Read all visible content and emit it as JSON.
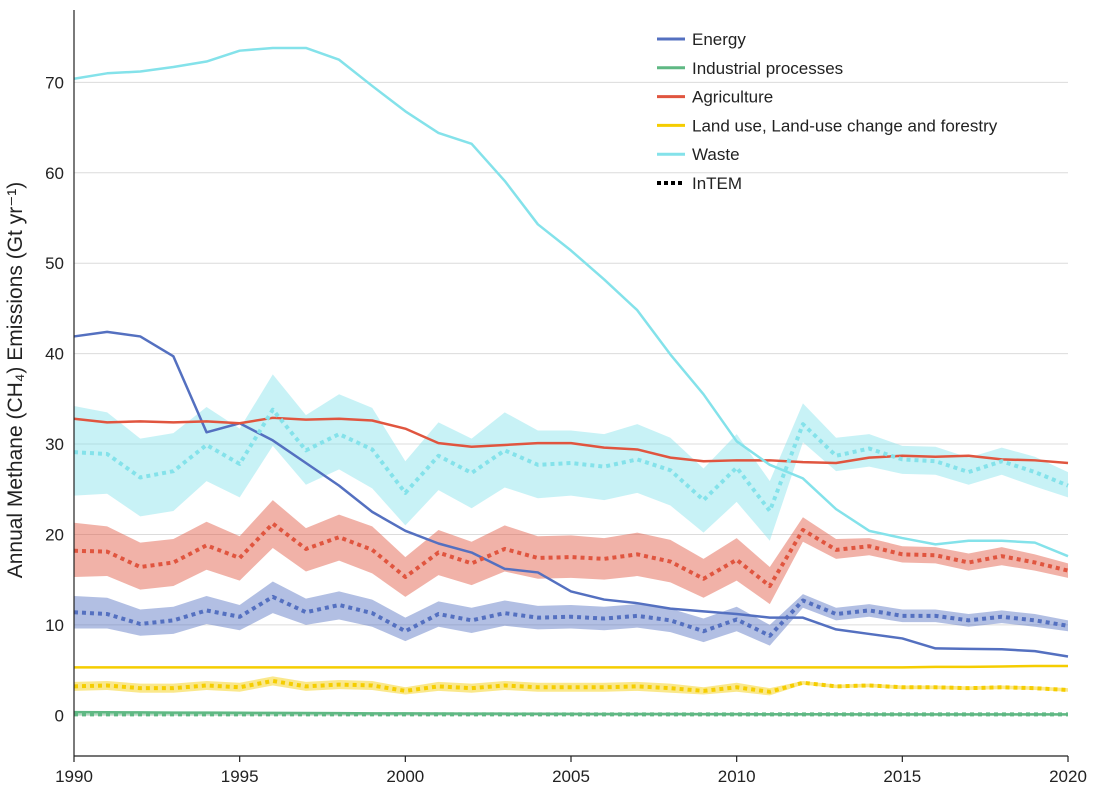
{
  "chart_data": {
    "type": "line",
    "title": "",
    "xlabel": "",
    "ylabel": "Annual Methane (CH₄) Emissions (Gt yr⁻¹)",
    "xlim": [
      1990,
      2020
    ],
    "ylim": [
      -4.5,
      78
    ],
    "xticks": [
      1990,
      1995,
      2000,
      2005,
      2010,
      2015,
      2020
    ],
    "yticks": [
      0,
      10,
      20,
      30,
      40,
      50,
      60,
      70
    ],
    "grid": "horizontal",
    "legend_position": "top-right",
    "legend": [
      {
        "label": "Energy",
        "color": "#5470c0",
        "style": "solid"
      },
      {
        "label": "Industrial processes",
        "color": "#5fb883",
        "style": "solid"
      },
      {
        "label": "Agriculture",
        "color": "#e0553f",
        "style": "solid"
      },
      {
        "label": "Land use, Land-use change and forestry",
        "color": "#f5cd00",
        "style": "solid"
      },
      {
        "label": "Waste",
        "color": "#84e2ea",
        "style": "solid"
      },
      {
        "label": "InTEM",
        "color": "#000000",
        "style": "dotted"
      }
    ],
    "x": [
      1990,
      1991,
      1992,
      1993,
      1994,
      1995,
      1996,
      1997,
      1998,
      1999,
      2000,
      2001,
      2002,
      2003,
      2004,
      2005,
      2006,
      2007,
      2008,
      2009,
      2010,
      2011,
      2012,
      2013,
      2014,
      2015,
      2016,
      2017,
      2018,
      2019,
      2020
    ],
    "inventory_series": [
      {
        "name": "Energy",
        "color": "#5470c0",
        "values": [
          41.9,
          42.4,
          41.9,
          39.7,
          31.3,
          32.3,
          30.4,
          27.9,
          25.4,
          22.5,
          20.4,
          19.0,
          18.0,
          16.2,
          15.8,
          13.7,
          12.8,
          12.4,
          11.8,
          11.5,
          11.2,
          10.8,
          10.8,
          9.5,
          9.0,
          8.5,
          7.4,
          7.35,
          7.3,
          7.1,
          6.5
        ]
      },
      {
        "name": "Industrial processes",
        "color": "#5fb883",
        "values": [
          0.35,
          0.34,
          0.32,
          0.3,
          0.29,
          0.28,
          0.27,
          0.25,
          0.24,
          0.22,
          0.21,
          0.2,
          0.19,
          0.18,
          0.17,
          0.16,
          0.15,
          0.15,
          0.14,
          0.13,
          0.13,
          0.12,
          0.12,
          0.12,
          0.11,
          0.11,
          0.11,
          0.11,
          0.1,
          0.1,
          0.1
        ]
      },
      {
        "name": "Agriculture",
        "color": "#e0553f",
        "values": [
          32.8,
          32.4,
          32.5,
          32.4,
          32.5,
          32.3,
          32.9,
          32.7,
          32.8,
          32.6,
          31.7,
          30.1,
          29.7,
          29.9,
          30.1,
          30.1,
          29.6,
          29.4,
          28.5,
          28.1,
          28.2,
          28.2,
          28.0,
          27.9,
          28.5,
          28.7,
          28.6,
          28.7,
          28.3,
          28.2,
          27.9
        ]
      },
      {
        "name": "Land use, Land-use change and forestry",
        "color": "#f5cd00",
        "values": [
          5.3,
          5.3,
          5.3,
          5.3,
          5.3,
          5.3,
          5.3,
          5.3,
          5.3,
          5.3,
          5.3,
          5.3,
          5.3,
          5.3,
          5.3,
          5.3,
          5.3,
          5.3,
          5.3,
          5.3,
          5.3,
          5.3,
          5.3,
          5.3,
          5.3,
          5.3,
          5.35,
          5.35,
          5.4,
          5.45,
          5.45
        ]
      },
      {
        "name": "Waste",
        "color": "#84e2ea",
        "values": [
          70.4,
          71.0,
          71.2,
          71.7,
          72.3,
          73.5,
          73.8,
          73.8,
          72.5,
          69.6,
          66.8,
          64.4,
          63.2,
          59.1,
          54.3,
          51.4,
          48.2,
          44.8,
          39.9,
          35.5,
          30.3,
          27.7,
          26.2,
          22.8,
          20.4,
          19.6,
          18.9,
          19.3,
          19.3,
          19.1,
          17.6
        ]
      }
    ],
    "intem_series": [
      {
        "name": "Energy",
        "color": "#5470c0",
        "values": [
          11.4,
          11.2,
          10.1,
          10.5,
          11.6,
          10.9,
          13.1,
          11.4,
          12.2,
          11.3,
          9.3,
          11.2,
          10.5,
          11.3,
          10.8,
          10.9,
          10.7,
          11.0,
          10.5,
          9.3,
          10.6,
          8.8,
          12.7,
          11.2,
          11.6,
          11.0,
          11.0,
          10.5,
          10.9,
          10.5,
          9.9
        ],
        "lower": [
          9.6,
          9.6,
          8.8,
          9.0,
          10.1,
          9.4,
          11.3,
          10.0,
          10.6,
          9.8,
          8.2,
          9.8,
          9.1,
          9.9,
          9.5,
          9.6,
          9.4,
          9.7,
          9.2,
          8.1,
          9.3,
          7.7,
          11.9,
          10.5,
          10.9,
          10.3,
          10.3,
          9.8,
          10.2,
          9.8,
          9.3
        ],
        "upper": [
          13.2,
          13.0,
          11.7,
          12.0,
          13.2,
          12.2,
          14.8,
          12.9,
          13.7,
          12.8,
          10.8,
          12.6,
          11.9,
          12.7,
          12.1,
          12.2,
          12.0,
          12.3,
          11.8,
          10.7,
          12.0,
          10.0,
          13.4,
          11.9,
          12.3,
          11.7,
          11.7,
          11.2,
          11.6,
          11.2,
          10.5
        ]
      },
      {
        "name": "Industrial processes",
        "color": "#5fb883",
        "values": [
          0.1,
          0.1,
          0.1,
          0.1,
          0.1,
          0.1,
          0.1,
          0.1,
          0.1,
          0.1,
          0.1,
          0.1,
          0.1,
          0.1,
          0.1,
          0.1,
          0.1,
          0.1,
          0.1,
          0.1,
          0.1,
          0.1,
          0.1,
          0.1,
          0.1,
          0.1,
          0.1,
          0.1,
          0.1,
          0.1,
          0.1
        ],
        "lower": [
          0.0,
          0.0,
          0.0,
          0.0,
          0.0,
          0.0,
          0.0,
          0.0,
          0.0,
          0.0,
          0.0,
          0.0,
          0.0,
          0.0,
          0.0,
          0.0,
          0.0,
          0.0,
          0.0,
          0.0,
          0.0,
          0.0,
          0.0,
          0.0,
          0.0,
          0.0,
          0.0,
          0.0,
          0.0,
          0.0,
          0.0
        ],
        "upper": [
          0.2,
          0.2,
          0.2,
          0.2,
          0.2,
          0.2,
          0.2,
          0.2,
          0.2,
          0.2,
          0.2,
          0.2,
          0.2,
          0.2,
          0.2,
          0.2,
          0.2,
          0.2,
          0.2,
          0.2,
          0.2,
          0.2,
          0.2,
          0.2,
          0.2,
          0.2,
          0.2,
          0.2,
          0.2,
          0.2,
          0.2
        ]
      },
      {
        "name": "Agriculture",
        "color": "#e0553f",
        "values": [
          18.2,
          18.1,
          16.4,
          16.9,
          18.8,
          17.4,
          21.2,
          18.4,
          19.7,
          18.3,
          15.3,
          18.0,
          16.8,
          18.4,
          17.4,
          17.5,
          17.3,
          17.8,
          17.0,
          15.1,
          17.2,
          14.3,
          20.5,
          18.3,
          18.7,
          17.8,
          17.7,
          16.9,
          17.6,
          16.9,
          16.0
        ],
        "lower": [
          15.3,
          15.4,
          13.9,
          14.3,
          16.1,
          14.9,
          18.5,
          15.9,
          17.1,
          15.7,
          13.1,
          15.5,
          14.4,
          15.9,
          15.1,
          15.2,
          15.0,
          15.4,
          14.7,
          13.0,
          14.9,
          12.3,
          19.2,
          17.3,
          17.7,
          16.9,
          16.8,
          16.0,
          16.6,
          16.0,
          15.2
        ],
        "upper": [
          21.3,
          20.9,
          19.1,
          19.5,
          21.4,
          19.8,
          23.8,
          20.7,
          22.2,
          20.9,
          17.5,
          20.5,
          19.2,
          21.0,
          19.8,
          19.9,
          19.6,
          20.2,
          19.4,
          17.3,
          19.6,
          16.4,
          21.9,
          19.5,
          19.6,
          18.7,
          18.6,
          17.9,
          18.6,
          17.8,
          16.8
        ]
      },
      {
        "name": "Land use, Land-use change and forestry",
        "color": "#f5cd00",
        "values": [
          3.2,
          3.3,
          3.0,
          3.0,
          3.3,
          3.1,
          3.8,
          3.2,
          3.4,
          3.3,
          2.7,
          3.2,
          3.0,
          3.3,
          3.1,
          3.1,
          3.1,
          3.2,
          3.0,
          2.7,
          3.1,
          2.6,
          3.6,
          3.2,
          3.3,
          3.1,
          3.1,
          3.0,
          3.1,
          3.0,
          2.8
        ],
        "lower": [
          2.7,
          2.8,
          2.5,
          2.5,
          2.8,
          2.6,
          3.3,
          2.7,
          2.9,
          2.8,
          2.3,
          2.7,
          2.5,
          2.8,
          2.6,
          2.6,
          2.6,
          2.7,
          2.5,
          2.3,
          2.6,
          2.2,
          3.4,
          3.0,
          3.1,
          2.9,
          2.9,
          2.8,
          2.9,
          2.8,
          2.6
        ],
        "upper": [
          3.7,
          3.8,
          3.5,
          3.5,
          3.8,
          3.6,
          4.3,
          3.7,
          3.9,
          3.8,
          3.1,
          3.7,
          3.5,
          3.8,
          3.6,
          3.6,
          3.6,
          3.7,
          3.5,
          3.1,
          3.6,
          3.0,
          3.8,
          3.4,
          3.5,
          3.3,
          3.3,
          3.2,
          3.3,
          3.2,
          3.0
        ]
      },
      {
        "name": "Waste",
        "color": "#84e2ea",
        "values": [
          29.1,
          28.9,
          26.3,
          27.0,
          29.9,
          27.8,
          33.8,
          29.3,
          31.1,
          29.4,
          24.6,
          28.7,
          26.8,
          29.3,
          27.7,
          27.9,
          27.5,
          28.3,
          27.1,
          23.8,
          27.4,
          22.6,
          32.2,
          28.7,
          29.5,
          28.3,
          28.1,
          26.9,
          28.1,
          26.9,
          25.4
        ],
        "lower": [
          24.3,
          24.5,
          22.0,
          22.6,
          25.9,
          24.1,
          29.8,
          25.5,
          27.2,
          25.1,
          21.0,
          24.9,
          22.9,
          25.2,
          24.0,
          24.3,
          23.8,
          24.6,
          23.2,
          20.2,
          23.6,
          19.3,
          30.2,
          27.0,
          27.5,
          26.7,
          26.6,
          25.5,
          26.6,
          25.3,
          24.1
        ],
        "upper": [
          34.2,
          33.5,
          30.6,
          31.2,
          34.1,
          31.7,
          37.7,
          33.2,
          35.5,
          34.0,
          28.1,
          32.4,
          30.6,
          33.5,
          31.5,
          31.5,
          31.1,
          32.2,
          30.7,
          27.3,
          31.1,
          25.9,
          34.5,
          30.7,
          31.1,
          29.8,
          29.7,
          28.5,
          29.6,
          28.6,
          26.9
        ]
      }
    ]
  }
}
